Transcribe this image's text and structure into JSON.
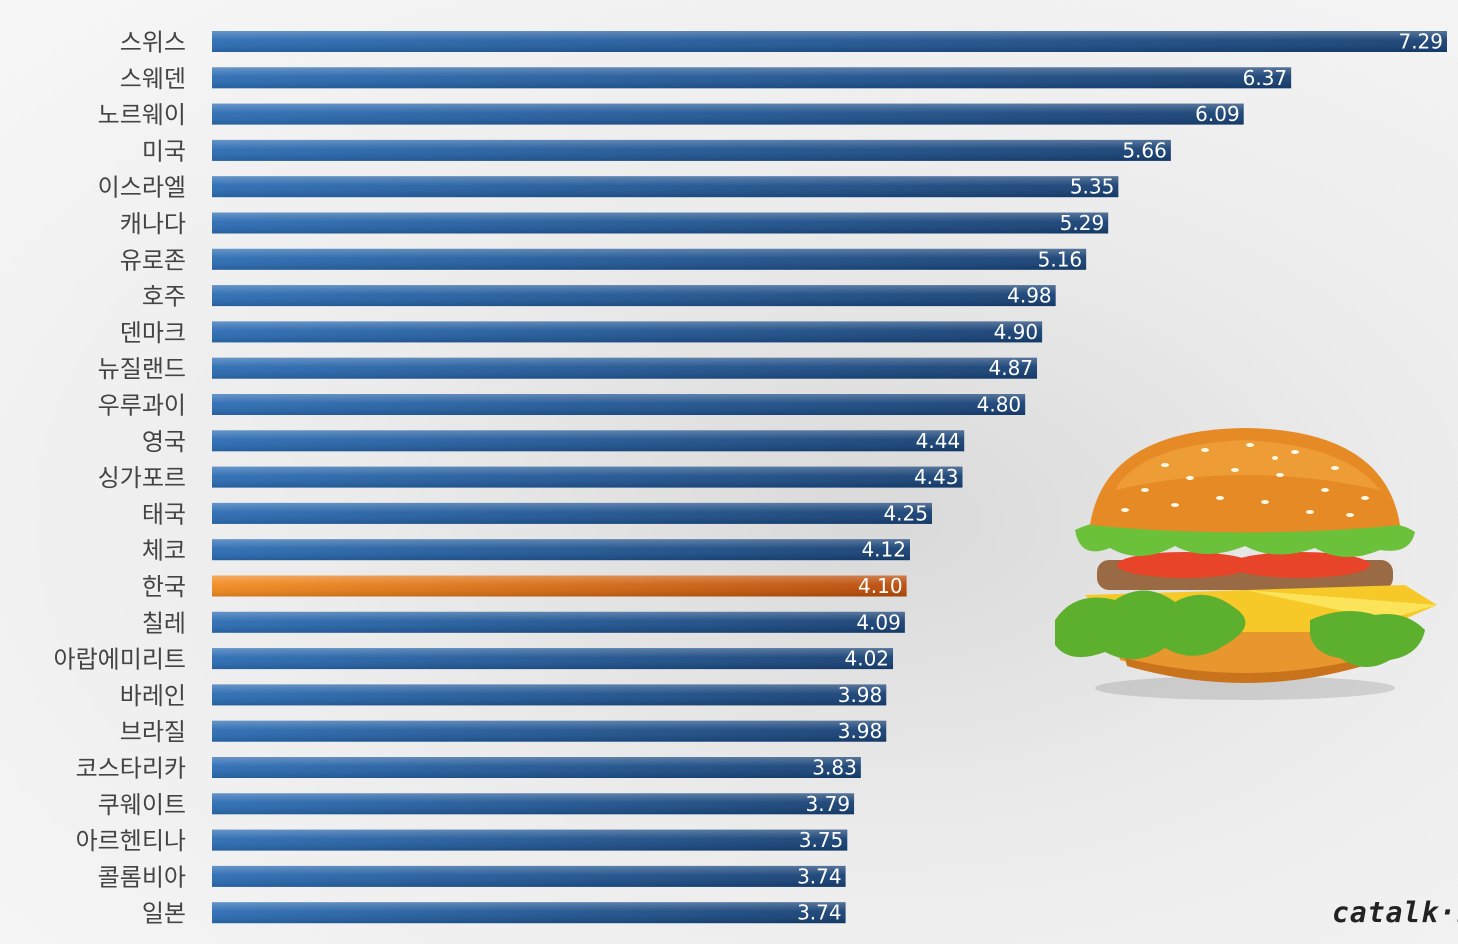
{
  "chart_data": {
    "type": "bar",
    "orientation": "horizontal",
    "categories": [
      "스위스",
      "스웨덴",
      "노르웨이",
      "미국",
      "이스라엘",
      "캐나다",
      "유로존",
      "호주",
      "덴마크",
      "뉴질랜드",
      "우루과이",
      "영국",
      "싱가포르",
      "태국",
      "체코",
      "한국",
      "칠레",
      "아랍에미리트",
      "바레인",
      "브라질",
      "코스타리카",
      "쿠웨이트",
      "아르헨티나",
      "콜롬비아",
      "일본"
    ],
    "values": [
      7.29,
      6.37,
      6.09,
      5.66,
      5.35,
      5.29,
      5.16,
      4.98,
      4.9,
      4.87,
      4.8,
      4.44,
      4.43,
      4.25,
      4.12,
      4.1,
      4.09,
      4.02,
      3.98,
      3.98,
      3.83,
      3.79,
      3.75,
      3.74,
      3.74
    ],
    "value_labels": [
      "7.29",
      "6.37",
      "6.09",
      "5.66",
      "5.35",
      "5.29",
      "5.16",
      "4.98",
      "4.90",
      "4.87",
      "4.80",
      "4.44",
      "4.43",
      "4.25",
      "4.12",
      "4.10",
      "4.09",
      "4.02",
      "3.98",
      "3.98",
      "3.83",
      "3.79",
      "3.75",
      "3.74",
      "3.74"
    ],
    "highlight": "한국",
    "xlim": [
      0,
      7.29
    ],
    "grid": false,
    "legend": "none",
    "colors": {
      "bar_start": "#2b6cb3",
      "bar_end": "#163f72",
      "highlight_start": "#f28a1f",
      "highlight_end": "#b84a08",
      "label": "#444444",
      "value_label": "#ffffff"
    }
  },
  "illustration": {
    "icon": "hamburger-icon"
  },
  "watermark": "catalk·I"
}
